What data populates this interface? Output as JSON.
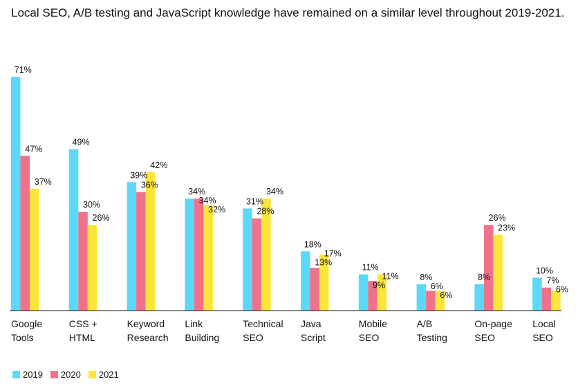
{
  "chart_data": {
    "type": "bar",
    "title": "Local SEO, A/B testing and JavaScript knowledge have remained on a similar level throughout 2019-2021.",
    "xlabel": "",
    "ylabel": "",
    "ylim": [
      0,
      71
    ],
    "grid": false,
    "legend_position": "bottom-left",
    "value_suffix": "%",
    "categories": [
      [
        "Google",
        "Tools"
      ],
      [
        "CSS +",
        "HTML"
      ],
      [
        "Keyword",
        "Research"
      ],
      [
        "Link",
        "Building"
      ],
      [
        "Technical",
        "SEO"
      ],
      [
        "Java",
        "Script"
      ],
      [
        "Mobile",
        "SEO"
      ],
      [
        "A/B",
        "Testing"
      ],
      [
        "On-page",
        "SEO"
      ],
      [
        "Local",
        "SEO"
      ]
    ],
    "series": [
      {
        "name": "2019",
        "color": "#5cd8f8",
        "values": [
          71,
          49,
          39,
          34,
          31,
          18,
          11,
          8,
          8,
          10
        ]
      },
      {
        "name": "2020",
        "color": "#f0728a",
        "values": [
          47,
          30,
          36,
          34,
          28,
          13,
          9,
          6,
          26,
          7
        ]
      },
      {
        "name": "2021",
        "color": "#fbe53b",
        "values": [
          37,
          26,
          42,
          32,
          34,
          17,
          11,
          6,
          23,
          6
        ]
      }
    ]
  }
}
